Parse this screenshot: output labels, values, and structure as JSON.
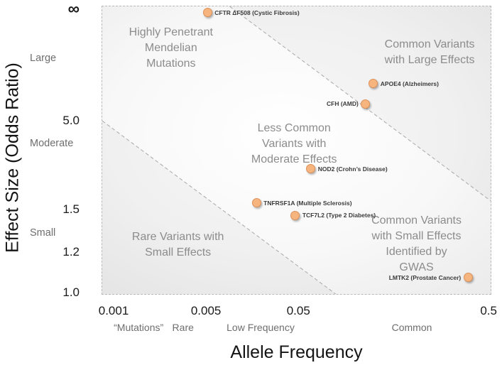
{
  "chart_data": {
    "type": "scatter",
    "title": "",
    "xlabel": "Allele Frequency",
    "ylabel": "Effect Size (Odds Ratio)",
    "x_scale": "log (schematic)",
    "y_scale": "log (schematic)",
    "x_axis": {
      "ticks": [
        {
          "label": "0.001",
          "pos": 0.031
        },
        {
          "label": "0.005",
          "pos": 0.268
        },
        {
          "label": "0.05",
          "pos": 0.505
        },
        {
          "label": "0.5",
          "pos": 0.993
        }
      ],
      "category_labels": [
        {
          "label": "“Mutations”",
          "pos": 0.095
        },
        {
          "label": "Rare",
          "pos": 0.209
        },
        {
          "label": "Low Frequency",
          "pos": 0.408
        },
        {
          "label": "Common",
          "pos": 0.796
        }
      ]
    },
    "y_axis": {
      "ticks": [
        {
          "label": "∞",
          "pos": 0.015
        },
        {
          "label": "5.0",
          "pos": 0.398
        },
        {
          "label": "1.5",
          "pos": 0.705
        },
        {
          "label": "1.2",
          "pos": 0.853
        },
        {
          "label": "1.0",
          "pos": 0.993
        }
      ],
      "category_labels": [
        {
          "label": "Large",
          "pos": 0.182
        },
        {
          "label": "Moderate",
          "pos": 0.477
        },
        {
          "label": "Small",
          "pos": 0.786
        }
      ]
    },
    "points": [
      {
        "id": "cftr-df508",
        "gene": "CFTR ΔF508",
        "disease": "Cystic Fibrosis",
        "label": "CFTR ΔF508 (Cystic Fibrosis)",
        "allele_frequency_approx": 0.004,
        "odds_ratio_approx": "∞",
        "fx": 0.271,
        "fy": 0.022,
        "label_side": "right"
      },
      {
        "id": "apoe4",
        "gene": "APOE4",
        "disease": "Alzheimers",
        "label": "APOE4 (Alzheimers)",
        "allele_frequency_approx": 0.1,
        "odds_ratio_approx": 10,
        "fx": 0.698,
        "fy": 0.268,
        "label_side": "right"
      },
      {
        "id": "cfh",
        "gene": "CFH",
        "disease": "AMD",
        "label": "CFH (AMD)",
        "allele_frequency_approx": 0.09,
        "odds_ratio_approx": 6,
        "fx": 0.678,
        "fy": 0.339,
        "label_side": "left"
      },
      {
        "id": "nod2",
        "gene": "NOD2",
        "disease": "Crohn’s Disease",
        "label": "NOD2 (Crohn’s Disease)",
        "allele_frequency_approx": 0.03,
        "odds_ratio_approx": 2.5,
        "fx": 0.537,
        "fy": 0.565,
        "label_side": "right"
      },
      {
        "id": "tnfrsf1a",
        "gene": "TNFRSF1A",
        "disease": "Multiple Sclerosis",
        "label": "TNFRSF1A (Multiple Sclerosis)",
        "allele_frequency_approx": 0.008,
        "odds_ratio_approx": 1.6,
        "fx": 0.397,
        "fy": 0.683,
        "label_side": "right"
      },
      {
        "id": "tcf7l2",
        "gene": "TCF7L2",
        "disease": "Type 2 Diabetes",
        "label": "TCF7L2 (Type 2 Diabetes)",
        "allele_frequency_approx": 0.025,
        "odds_ratio_approx": 1.45,
        "fx": 0.497,
        "fy": 0.727,
        "label_side": "right"
      },
      {
        "id": "lmtk2",
        "gene": "LMTK2",
        "disease": "Prostate Cancer",
        "label": "LMTK2 (Prostate Cancer)",
        "allele_frequency_approx": 0.35,
        "odds_ratio_approx": 1.1,
        "fx": 0.942,
        "fy": 0.943,
        "label_side": "left"
      }
    ],
    "region_labels": [
      {
        "name": "highly-penetrant-mendelian-mutations",
        "lines": [
          "Highly Penetrant",
          "Mendelian",
          "Mutations"
        ],
        "fx": 0.177,
        "fy": 0.145
      },
      {
        "name": "common-variants-with-large-effects",
        "lines": [
          "Common Variants",
          "with Large Effects"
        ],
        "fx": 0.843,
        "fy": 0.16
      },
      {
        "name": "less-common-variants-with-moderate-effects",
        "lines": [
          "Less Common",
          "Variants with",
          "Moderate Effects"
        ],
        "fx": 0.494,
        "fy": 0.479
      },
      {
        "name": "rare-variants-with-small-effects",
        "lines": [
          "Rare Variants with",
          "Small Effects"
        ],
        "fx": 0.195,
        "fy": 0.83
      },
      {
        "name": "common-variants-with-small-effects-identified-by-gwas",
        "lines": [
          "Common Variants",
          "with Small Effects",
          "Identified by",
          "GWAS"
        ],
        "fx": 0.809,
        "fy": 0.828
      }
    ],
    "boundary_lines": [
      {
        "x1": 0.328,
        "y1": 0,
        "x2": 1,
        "y2": 0.676
      },
      {
        "x1": 0,
        "y1": 0.398,
        "x2": 0.601,
        "y2": 1
      }
    ],
    "shaded_regions": [
      {
        "points": [
          [
            0.328,
            0
          ],
          [
            1,
            0
          ],
          [
            1,
            0.676
          ]
        ]
      },
      {
        "points": [
          [
            0,
            0.398
          ],
          [
            0.601,
            1
          ],
          [
            0,
            1
          ]
        ]
      }
    ],
    "legend": "none",
    "grid": "off",
    "colors": {
      "point_fill": "#F6B47E",
      "point_border": "#DD9157",
      "dashed_line": "#A8A8A8",
      "plot_border": "#B9B9B9",
      "region_text": "#8C8C8C",
      "tick_text": "#1A1A1A",
      "category_text": "#6E6E6E",
      "point_label_text": "#3B3B3B",
      "shade": "rgba(110,110,110,0.055)"
    }
  }
}
